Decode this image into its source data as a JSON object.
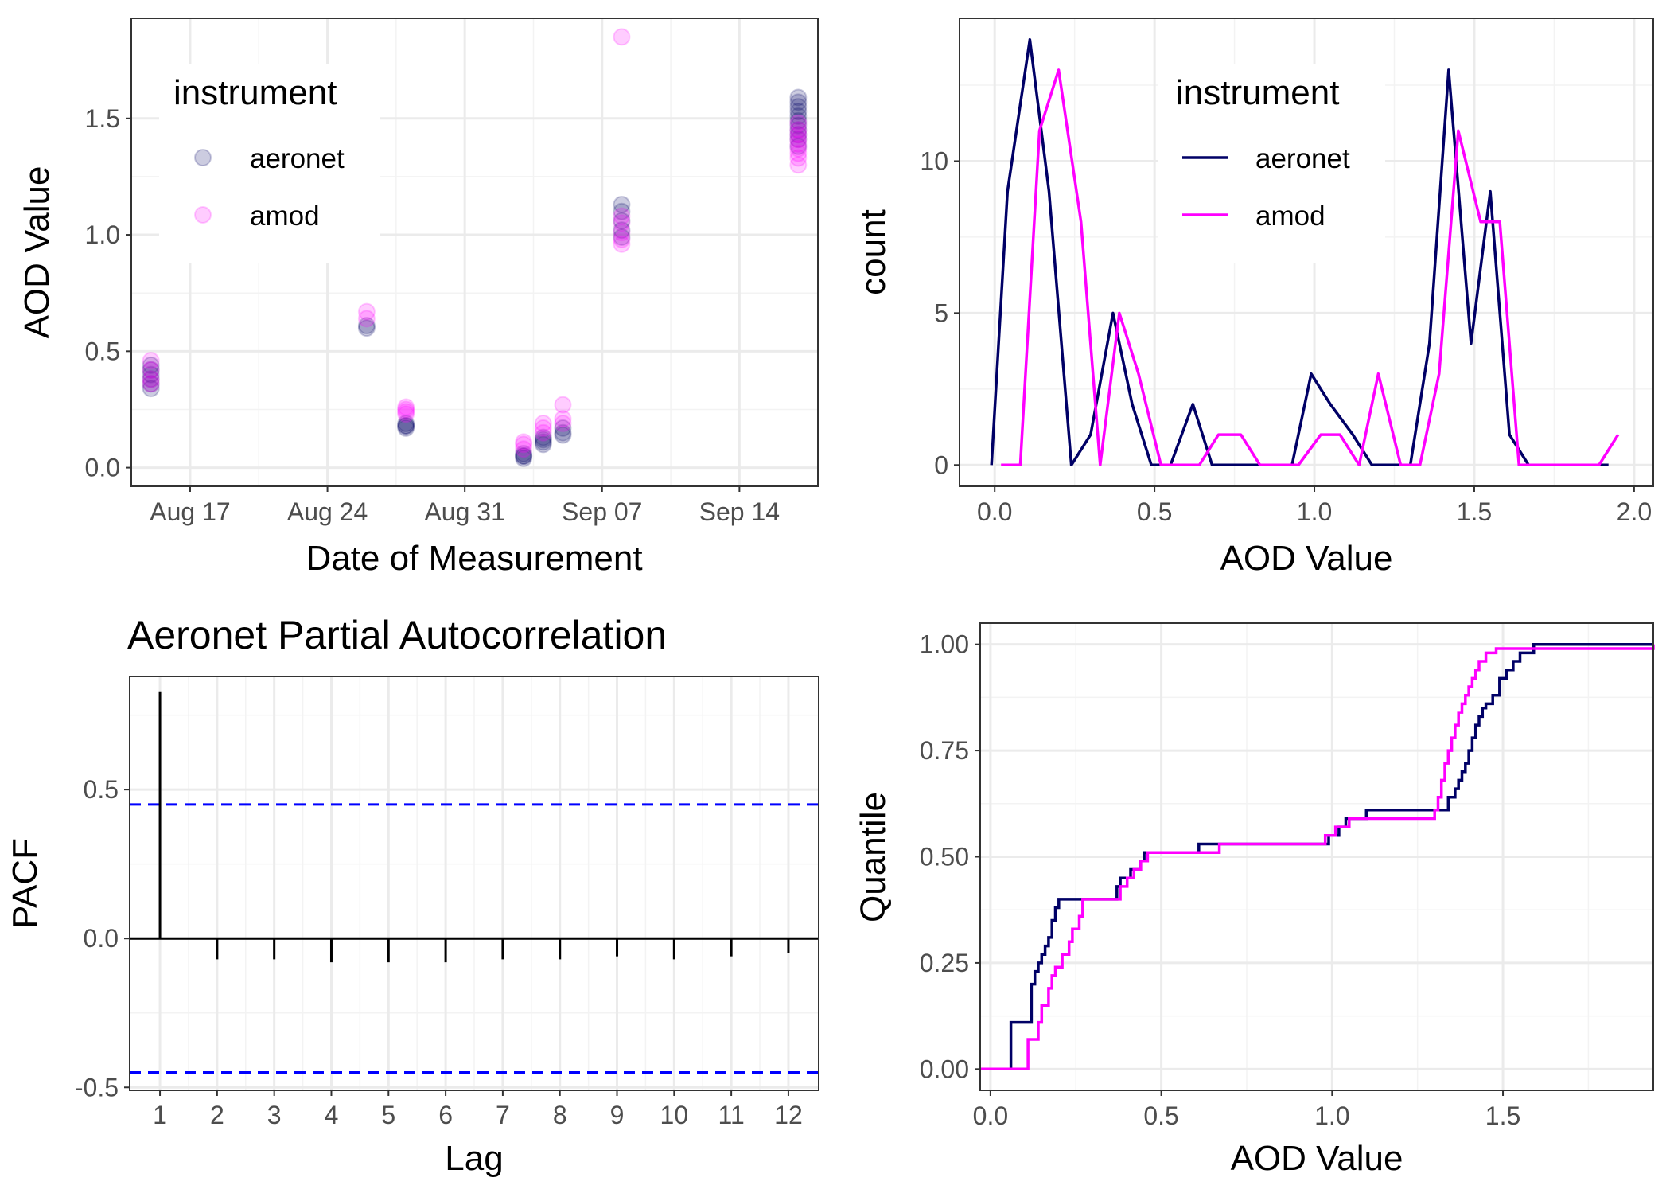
{
  "colors": {
    "aeronet": "#000066",
    "amod": "#ff00ff",
    "grid_major": "#ebebeb",
    "grid_minor": "#f3f3f3",
    "panel_border": "#333333",
    "ci_line": "#0000ff",
    "tick_text": "#4d4d4d"
  },
  "chart_data": [
    {
      "type": "scatter",
      "xlabel": "Date of Measurement",
      "ylabel": "AOD Value",
      "x_tick_labels": [
        "Aug 17",
        "Aug 24",
        "Aug 31",
        "Sep 07",
        "Sep 14"
      ],
      "x_ticks": [
        "2019-08-17",
        "2019-08-24",
        "2019-08-31",
        "2019-09-07",
        "2019-09-14"
      ],
      "xlim": [
        "2019-08-14",
        "2019-09-18"
      ],
      "y_ticks": [
        0.0,
        0.5,
        1.0,
        1.5
      ],
      "y_tick_labels": [
        "0.0",
        "0.5",
        "1.0",
        "1.5"
      ],
      "ylim": [
        -0.08,
        1.93
      ],
      "legend": {
        "title": "instrument",
        "entries": [
          "aeronet",
          "amod"
        ],
        "position": "top-left"
      },
      "point_alpha": 0.2,
      "series": [
        {
          "name": "aeronet",
          "points": [
            [
              "2019-08-15",
              0.34
            ],
            [
              "2019-08-15",
              0.36
            ],
            [
              "2019-08-15",
              0.38
            ],
            [
              "2019-08-15",
              0.4
            ],
            [
              "2019-08-15",
              0.42
            ],
            [
              "2019-08-15",
              0.44
            ],
            [
              "2019-08-26",
              0.6
            ],
            [
              "2019-08-26",
              0.61
            ],
            [
              "2019-08-28",
              0.17
            ],
            [
              "2019-08-28",
              0.18
            ],
            [
              "2019-08-28",
              0.18
            ],
            [
              "2019-08-28",
              0.19
            ],
            [
              "2019-09-03",
              0.04
            ],
            [
              "2019-09-03",
              0.05
            ],
            [
              "2019-09-03",
              0.05
            ],
            [
              "2019-09-03",
              0.06
            ],
            [
              "2019-09-04",
              0.1
            ],
            [
              "2019-09-04",
              0.11
            ],
            [
              "2019-09-04",
              0.12
            ],
            [
              "2019-09-04",
              0.13
            ],
            [
              "2019-09-05",
              0.14
            ],
            [
              "2019-09-05",
              0.15
            ],
            [
              "2019-09-05",
              0.17
            ],
            [
              "2019-09-08",
              0.99
            ],
            [
              "2019-09-08",
              1.02
            ],
            [
              "2019-09-08",
              1.06
            ],
            [
              "2019-09-08",
              1.1
            ],
            [
              "2019-09-08",
              1.13
            ],
            [
              "2019-09-17",
              1.38
            ],
            [
              "2019-09-17",
              1.41
            ],
            [
              "2019-09-17",
              1.43
            ],
            [
              "2019-09-17",
              1.45
            ],
            [
              "2019-09-17",
              1.47
            ],
            [
              "2019-09-17",
              1.49
            ],
            [
              "2019-09-17",
              1.51
            ],
            [
              "2019-09-17",
              1.53
            ],
            [
              "2019-09-17",
              1.55
            ],
            [
              "2019-09-17",
              1.57
            ],
            [
              "2019-09-17",
              1.59
            ]
          ]
        },
        {
          "name": "amod",
          "points": [
            [
              "2019-08-15",
              0.36
            ],
            [
              "2019-08-15",
              0.38
            ],
            [
              "2019-08-15",
              0.42
            ],
            [
              "2019-08-15",
              0.46
            ],
            [
              "2019-08-26",
              0.64
            ],
            [
              "2019-08-26",
              0.67
            ],
            [
              "2019-08-28",
              0.23
            ],
            [
              "2019-08-28",
              0.24
            ],
            [
              "2019-08-28",
              0.25
            ],
            [
              "2019-08-28",
              0.26
            ],
            [
              "2019-09-03",
              0.08
            ],
            [
              "2019-09-03",
              0.1
            ],
            [
              "2019-09-03",
              0.11
            ],
            [
              "2019-09-04",
              0.15
            ],
            [
              "2019-09-04",
              0.17
            ],
            [
              "2019-09-04",
              0.19
            ],
            [
              "2019-09-05",
              0.19
            ],
            [
              "2019-09-05",
              0.21
            ],
            [
              "2019-09-05",
              0.27
            ],
            [
              "2019-09-08",
              0.96
            ],
            [
              "2019-09-08",
              0.98
            ],
            [
              "2019-09-08",
              1.01
            ],
            [
              "2019-09-08",
              1.05
            ],
            [
              "2019-09-08",
              1.08
            ],
            [
              "2019-09-08",
              1.85
            ],
            [
              "2019-09-17",
              1.3
            ],
            [
              "2019-09-17",
              1.33
            ],
            [
              "2019-09-17",
              1.35
            ],
            [
              "2019-09-17",
              1.37
            ],
            [
              "2019-09-17",
              1.39
            ],
            [
              "2019-09-17",
              1.41
            ],
            [
              "2019-09-17",
              1.43
            ],
            [
              "2019-09-17",
              1.45
            ],
            [
              "2019-09-17",
              1.48
            ]
          ]
        }
      ]
    },
    {
      "type": "line",
      "xlabel": "AOD Value",
      "ylabel": "count",
      "x_ticks": [
        0.0,
        0.5,
        1.0,
        1.5,
        2.0
      ],
      "x_tick_labels": [
        "0.0",
        "0.5",
        "1.0",
        "1.5",
        "2.0"
      ],
      "xlim": [
        -0.11,
        2.06
      ],
      "y_ticks": [
        0,
        5,
        10
      ],
      "y_tick_labels": [
        "0",
        "5",
        "10"
      ],
      "ylim": [
        -0.7,
        14.7
      ],
      "legend": {
        "title": "instrument",
        "entries": [
          "aeronet",
          "amod"
        ],
        "position": "top-center"
      },
      "series": [
        {
          "name": "aeronet",
          "x": [
            -0.01,
            0.04,
            0.11,
            0.17,
            0.24,
            0.3,
            0.37,
            0.43,
            0.49,
            0.55,
            0.62,
            0.68,
            0.74,
            0.8,
            0.87,
            0.93,
            0.99,
            1.05,
            1.12,
            1.18,
            1.24,
            1.3,
            1.36,
            1.42,
            1.49,
            1.55,
            1.61,
            1.67,
            1.74,
            1.8,
            1.86,
            1.92
          ],
          "values": [
            0,
            9,
            14,
            9,
            0,
            1,
            5,
            2,
            0,
            0,
            2,
            0,
            0,
            0,
            0,
            0,
            3,
            2,
            1,
            0,
            0,
            0,
            4,
            13,
            4,
            9,
            1,
            0,
            0,
            0,
            0,
            0
          ]
        },
        {
          "name": "amod",
          "x": [
            0.02,
            0.08,
            0.14,
            0.2,
            0.27,
            0.33,
            0.39,
            0.45,
            0.52,
            0.58,
            0.64,
            0.7,
            0.77,
            0.83,
            0.89,
            0.95,
            1.02,
            1.08,
            1.14,
            1.2,
            1.27,
            1.33,
            1.39,
            1.45,
            1.52,
            1.58,
            1.64,
            1.7,
            1.77,
            1.83,
            1.89,
            1.95
          ],
          "values": [
            0,
            0,
            11,
            13,
            8,
            0,
            5,
            3,
            0,
            0,
            0,
            1,
            1,
            0,
            0,
            0,
            1,
            1,
            0,
            3,
            0,
            0,
            3,
            11,
            8,
            8,
            0,
            0,
            0,
            0,
            0,
            1
          ]
        }
      ]
    },
    {
      "type": "bar",
      "title": "Aeronet Partial Autocorrelation",
      "xlabel": "Lag",
      "ylabel": "PACF",
      "categories": [
        "1",
        "2",
        "3",
        "4",
        "5",
        "6",
        "7",
        "8",
        "9",
        "10",
        "11",
        "12"
      ],
      "values": [
        0.83,
        -0.07,
        -0.07,
        -0.08,
        -0.08,
        -0.08,
        -0.07,
        -0.07,
        -0.06,
        -0.07,
        -0.06,
        -0.05
      ],
      "confidence_band": [
        0.45,
        -0.45
      ],
      "xlim": [
        0.47,
        12.53
      ],
      "y_ticks": [
        0.5,
        0.0,
        -0.5
      ],
      "y_tick_labels": [
        "0.5",
        "0.0",
        "-0.5"
      ],
      "ylim": [
        -0.51,
        0.88
      ]
    },
    {
      "type": "line",
      "xlabel": "AOD Value",
      "ylabel": "Quantile",
      "x_ticks": [
        0.0,
        0.5,
        1.0,
        1.5
      ],
      "x_tick_labels": [
        "0.0",
        "0.5",
        "1.0",
        "1.5"
      ],
      "xlim": [
        -0.03,
        1.94
      ],
      "y_ticks": [
        0.0,
        0.25,
        0.5,
        0.75,
        1.0
      ],
      "y_tick_labels": [
        "0.00",
        "0.25",
        "0.50",
        "0.75",
        "1.00"
      ],
      "ylim": [
        -0.05,
        1.05
      ],
      "series": [
        {
          "name": "aeronet",
          "x": [
            -0.03,
            0.05,
            0.06,
            0.11,
            0.12,
            0.13,
            0.14,
            0.15,
            0.16,
            0.17,
            0.18,
            0.19,
            0.2,
            0.27,
            0.36,
            0.37,
            0.38,
            0.41,
            0.44,
            0.45,
            0.6,
            0.61,
            0.98,
            0.99,
            1.02,
            1.04,
            1.07,
            1.1,
            1.13,
            1.32,
            1.34,
            1.36,
            1.37,
            1.38,
            1.39,
            1.4,
            1.41,
            1.42,
            1.43,
            1.44,
            1.45,
            1.47,
            1.49,
            1.51,
            1.53,
            1.55,
            1.59,
            1.85,
            1.94
          ],
          "values": [
            0.0,
            0.0,
            0.11,
            0.11,
            0.2,
            0.23,
            0.25,
            0.27,
            0.29,
            0.31,
            0.35,
            0.38,
            0.4,
            0.4,
            0.4,
            0.43,
            0.45,
            0.47,
            0.49,
            0.51,
            0.51,
            0.53,
            0.53,
            0.55,
            0.57,
            0.59,
            0.59,
            0.61,
            0.61,
            0.61,
            0.64,
            0.66,
            0.68,
            0.7,
            0.72,
            0.75,
            0.78,
            0.81,
            0.83,
            0.85,
            0.86,
            0.88,
            0.92,
            0.94,
            0.96,
            0.98,
            1.0,
            1.0,
            1.0
          ]
        },
        {
          "name": "amod",
          "x": [
            -0.03,
            0.1,
            0.11,
            0.14,
            0.15,
            0.17,
            0.18,
            0.19,
            0.21,
            0.23,
            0.24,
            0.26,
            0.27,
            0.36,
            0.38,
            0.4,
            0.42,
            0.44,
            0.46,
            0.64,
            0.67,
            0.96,
            0.98,
            1.01,
            1.05,
            1.08,
            1.3,
            1.31,
            1.32,
            1.33,
            1.34,
            1.35,
            1.36,
            1.37,
            1.38,
            1.39,
            1.4,
            1.41,
            1.42,
            1.43,
            1.45,
            1.48,
            1.5,
            1.85,
            1.94
          ],
          "values": [
            0.0,
            0.0,
            0.07,
            0.11,
            0.15,
            0.19,
            0.22,
            0.24,
            0.27,
            0.3,
            0.33,
            0.36,
            0.4,
            0.4,
            0.43,
            0.45,
            0.47,
            0.49,
            0.51,
            0.51,
            0.53,
            0.53,
            0.55,
            0.57,
            0.59,
            0.59,
            0.61,
            0.64,
            0.68,
            0.72,
            0.75,
            0.78,
            0.81,
            0.84,
            0.86,
            0.88,
            0.9,
            0.92,
            0.94,
            0.96,
            0.98,
            0.99,
            0.99,
            0.99,
            1.0
          ]
        }
      ]
    }
  ]
}
